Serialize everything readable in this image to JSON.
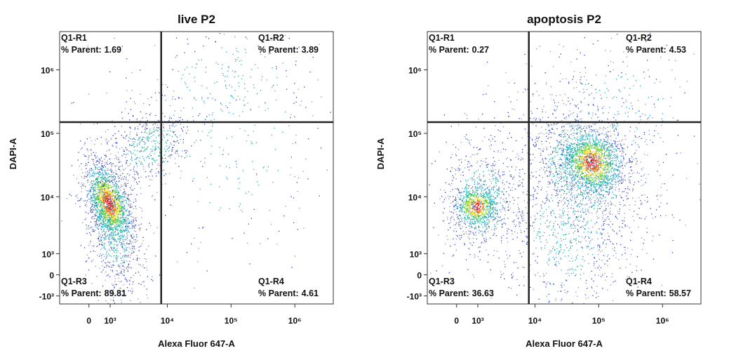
{
  "chart_data": [
    {
      "type": "scatter",
      "title": "live P2",
      "x_label": "Alexa Fluor 647-A",
      "y_label": "DAPI-A",
      "xscale": "biexponential",
      "yscale": "biexponential",
      "xlim": [
        -1500,
        4000000
      ],
      "ylim": [
        -1500,
        4000000
      ],
      "xticks": [
        0,
        {
          "value": 1000,
          "label": "10³"
        },
        {
          "value": 10000,
          "label": "10⁴"
        },
        {
          "value": 100000,
          "label": "10⁵"
        },
        {
          "value": 1000000,
          "label": "10⁶"
        }
      ],
      "yticks": [
        {
          "value": -1000,
          "label": "-10³"
        },
        0,
        {
          "value": 1000,
          "label": "10³"
        },
        {
          "value": 10000,
          "label": "10⁴"
        },
        {
          "value": 100000,
          "label": "10⁵"
        },
        {
          "value": 1000000,
          "label": "10⁶"
        }
      ],
      "gates": {
        "x": 8000,
        "y": 150000
      },
      "quadrants": [
        {
          "name": "Q1-R1",
          "label": "% Parent:",
          "value": 1.69,
          "position": "top-left"
        },
        {
          "name": "Q1-R2",
          "label": "% Parent:",
          "value": 3.89,
          "position": "top-right"
        },
        {
          "name": "Q1-R3",
          "label": "% Parent:",
          "value": 89.81,
          "position": "bottom-left"
        },
        {
          "name": "Q1-R4",
          "label": "% Parent:",
          "value": 4.61,
          "position": "bottom-right"
        }
      ]
    },
    {
      "type": "scatter",
      "title": "apoptosis P2",
      "x_label": "Alexa Fluor 647-A",
      "y_label": "DAPI-A",
      "xscale": "biexponential",
      "yscale": "biexponential",
      "xlim": [
        -1500,
        4000000
      ],
      "ylim": [
        -1500,
        4000000
      ],
      "xticks": [
        0,
        {
          "value": 1000,
          "label": "10³"
        },
        {
          "value": 10000,
          "label": "10⁴"
        },
        {
          "value": 100000,
          "label": "10⁵"
        },
        {
          "value": 1000000,
          "label": "10⁶"
        }
      ],
      "yticks": [
        {
          "value": -1000,
          "label": "-10³"
        },
        0,
        {
          "value": 1000,
          "label": "10³"
        },
        {
          "value": 10000,
          "label": "10⁴"
        },
        {
          "value": 100000,
          "label": "10⁵"
        },
        {
          "value": 1000000,
          "label": "10⁶"
        }
      ],
      "gates": {
        "x": 8000,
        "y": 150000
      },
      "quadrants": [
        {
          "name": "Q1-R1",
          "label": "% Parent:",
          "value": 0.27,
          "position": "top-left"
        },
        {
          "name": "Q1-R2",
          "label": "% Parent:",
          "value": 4.53,
          "position": "top-right"
        },
        {
          "name": "Q1-R3",
          "label": "% Parent:",
          "value": 36.63,
          "position": "bottom-left"
        },
        {
          "name": "Q1-R4",
          "label": "% Parent:",
          "value": 58.57,
          "position": "bottom-right"
        }
      ]
    }
  ]
}
